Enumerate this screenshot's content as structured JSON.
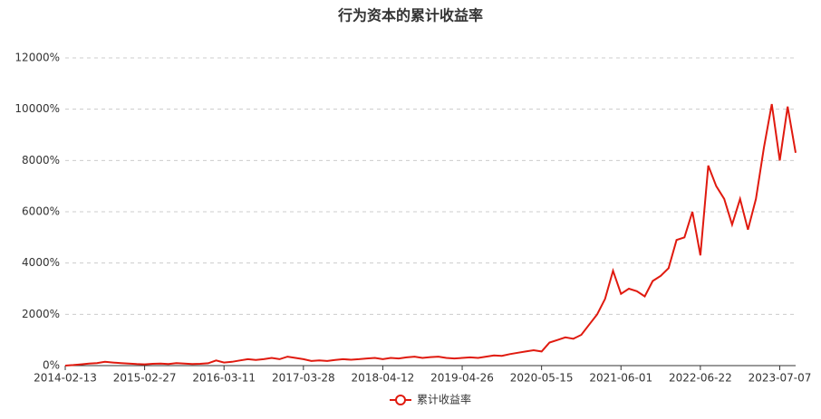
{
  "chart_data": {
    "type": "line",
    "title": "行为资本的累计收益率",
    "categories": [
      "2014-02-13",
      null,
      null,
      null,
      null,
      null,
      null,
      null,
      null,
      null,
      "2015-02-27",
      null,
      null,
      null,
      null,
      null,
      null,
      null,
      null,
      null,
      "2016-03-11",
      null,
      null,
      null,
      null,
      null,
      null,
      null,
      null,
      null,
      "2017-03-28",
      null,
      null,
      null,
      null,
      null,
      null,
      null,
      null,
      null,
      "2018-04-12",
      null,
      null,
      null,
      null,
      null,
      null,
      null,
      null,
      null,
      "2019-04-26",
      null,
      null,
      null,
      null,
      null,
      null,
      null,
      null,
      null,
      "2020-05-15",
      null,
      null,
      null,
      null,
      null,
      null,
      null,
      null,
      null,
      "2021-06-01",
      null,
      null,
      null,
      null,
      null,
      null,
      null,
      null,
      null,
      "2022-06-22",
      null,
      null,
      null,
      null,
      null,
      null,
      null,
      null,
      null,
      "2023-07-07",
      null,
      null
    ],
    "series": [
      {
        "name": "累计收益率",
        "color": "#e01a0f",
        "values": [
          0,
          20,
          50,
          80,
          100,
          150,
          120,
          100,
          80,
          60,
          50,
          70,
          80,
          60,
          100,
          80,
          60,
          70,
          90,
          200,
          120,
          150,
          200,
          250,
          220,
          250,
          300,
          250,
          350,
          300,
          250,
          180,
          200,
          180,
          220,
          250,
          230,
          250,
          280,
          300,
          250,
          300,
          280,
          320,
          350,
          300,
          330,
          350,
          300,
          280,
          300,
          320,
          300,
          350,
          400,
          380,
          450,
          500,
          550,
          600,
          550,
          900,
          1000,
          1100,
          1050,
          1200,
          1600,
          2000,
          2600,
          3700,
          2800,
          3000,
          2900,
          2700,
          3300,
          3500,
          3800,
          4900,
          5000,
          6000,
          4300,
          7800,
          7000,
          6500,
          5500,
          6500,
          5300,
          6500,
          8500,
          10200,
          8000,
          10100,
          8300
        ]
      }
    ],
    "ylim": [
      0,
      12000
    ],
    "yticks": [
      {
        "value": 0,
        "label": "0%"
      },
      {
        "value": 2000,
        "label": "2000%"
      },
      {
        "value": 4000,
        "label": "4000%"
      },
      {
        "value": 6000,
        "label": "6000%"
      },
      {
        "value": 8000,
        "label": "8000%"
      },
      {
        "value": 10000,
        "label": "10000%"
      },
      {
        "value": 12000,
        "label": "12000%"
      }
    ],
    "grid": true
  }
}
